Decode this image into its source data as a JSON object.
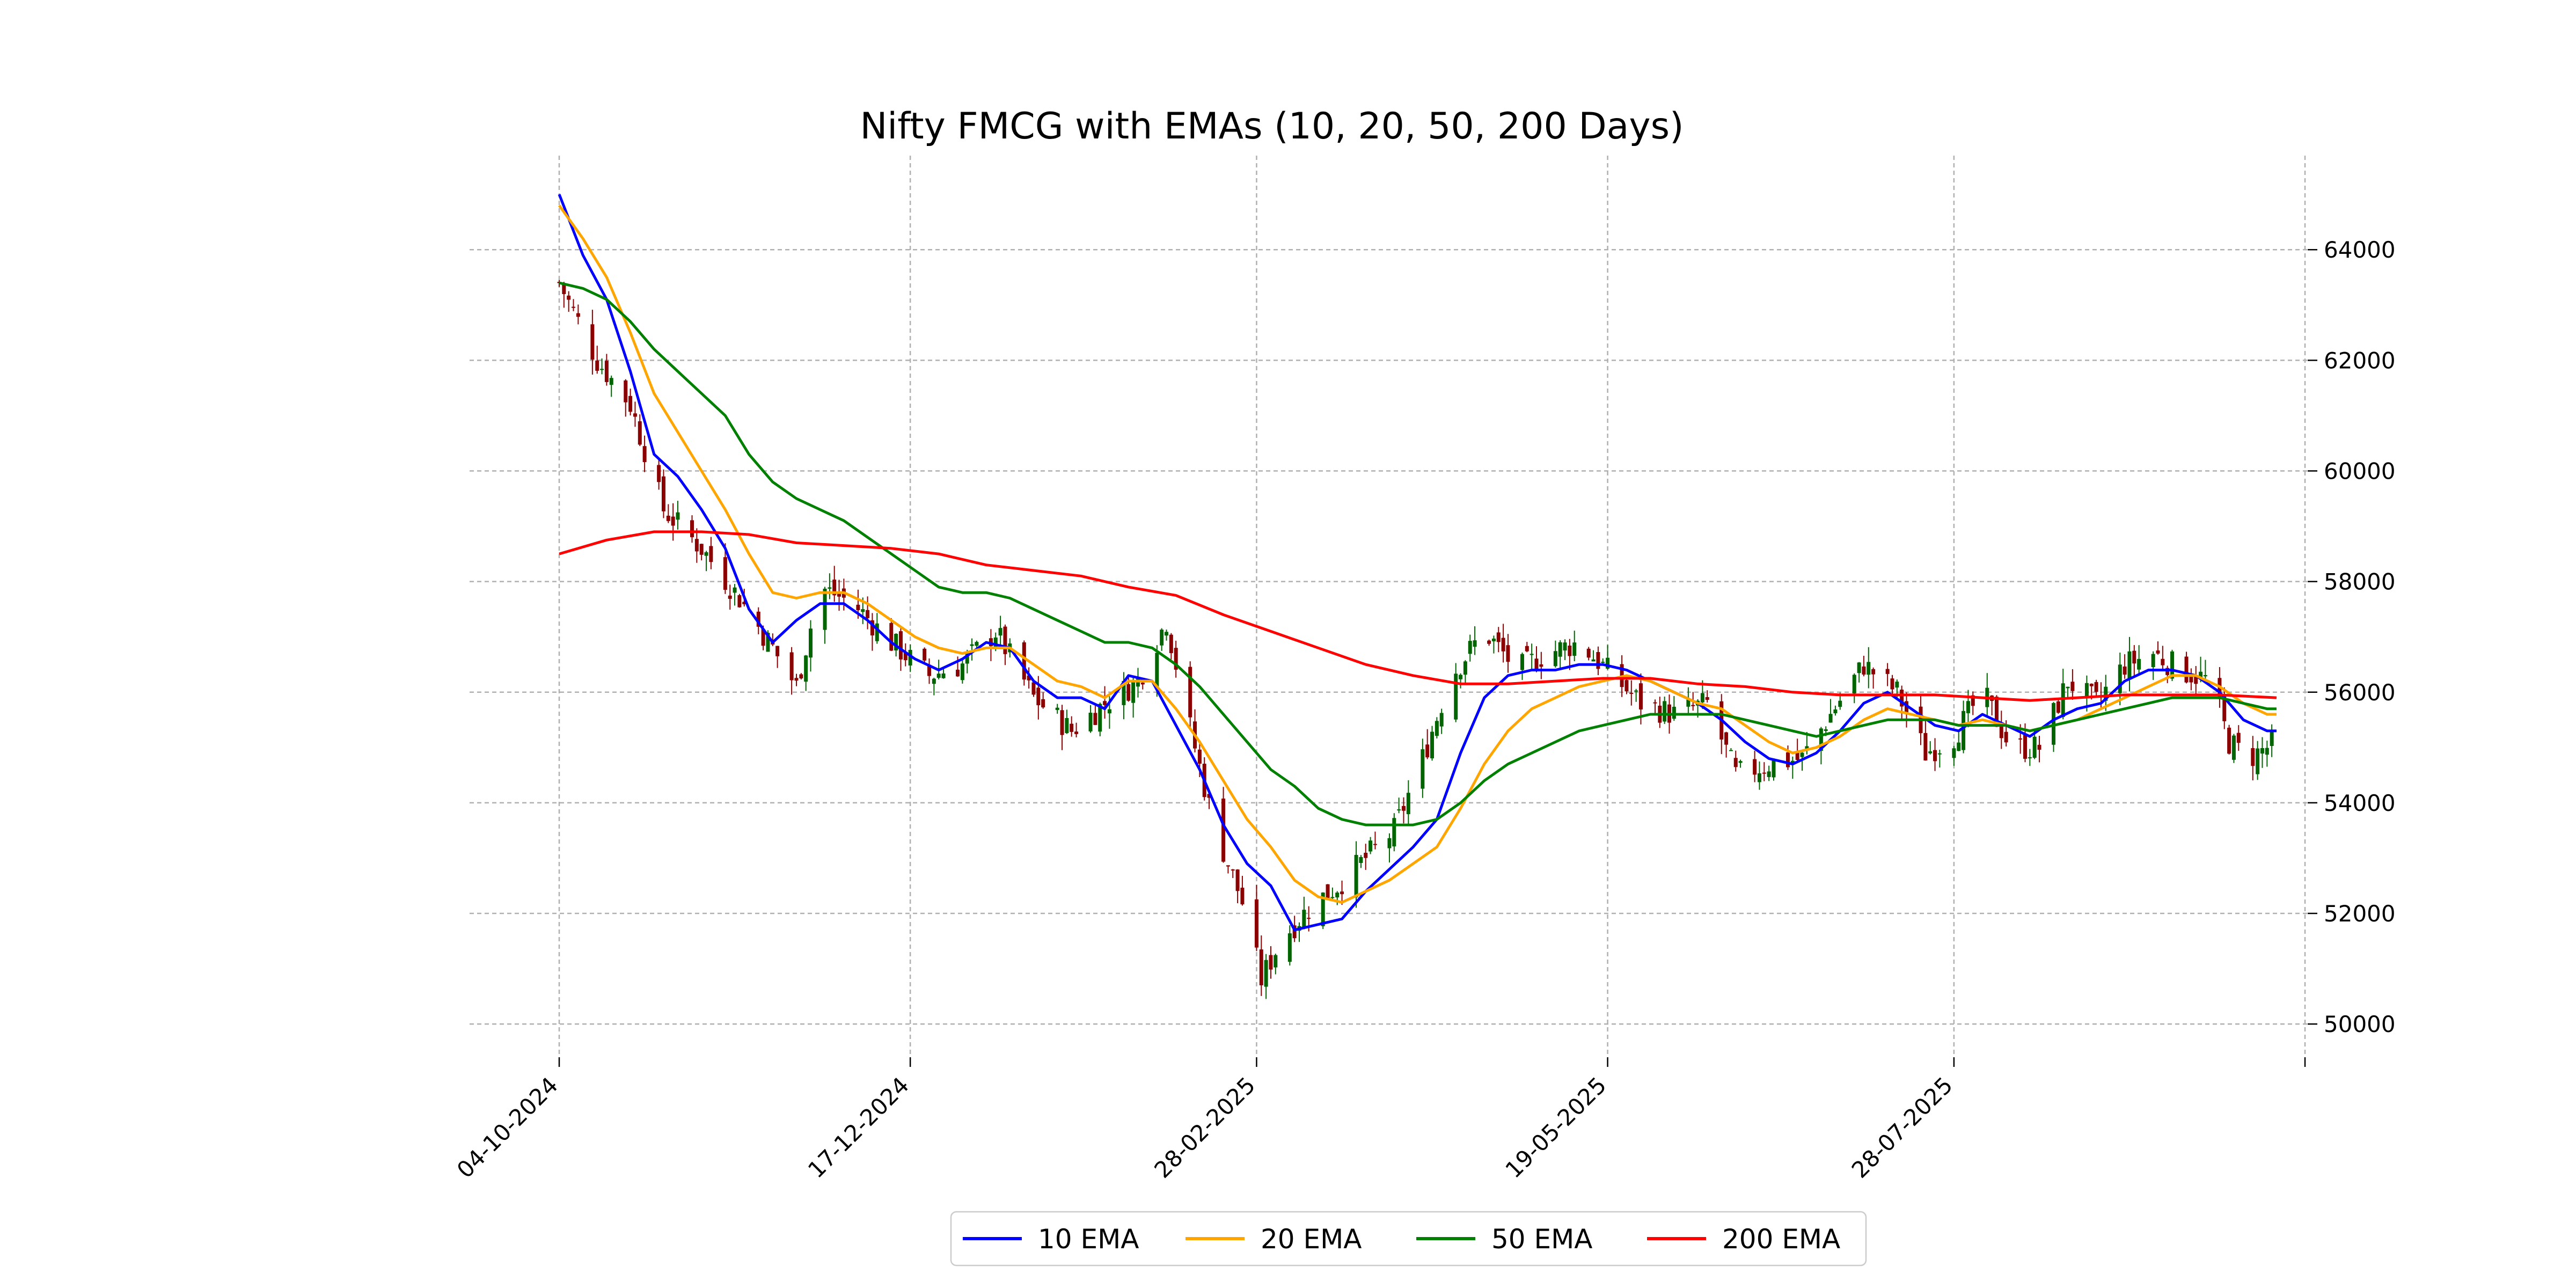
{
  "chart_data": {
    "type": "line",
    "title": "Nifty FMCG with EMAs (10, 20, 50, 200 Days)",
    "xlabel": "",
    "ylabel": "",
    "grid": true,
    "legend_placement": "bottom-center",
    "x_tick_labels": [
      "04-10-2024",
      "17-12-2024",
      "28-02-2025",
      "19-05-2025",
      "28-07-2025",
      ""
    ],
    "x_tick_days": [
      0,
      74,
      147,
      221,
      294,
      368
    ],
    "x_range_days": [
      0,
      362
    ],
    "y_ticks": [
      50000,
      52000,
      54000,
      56000,
      58000,
      60000,
      62000,
      64000
    ],
    "y_tick_labels": [
      "50000",
      "52000",
      "54000",
      "56000",
      "58000",
      "60000",
      "62000",
      "64000"
    ],
    "ylim": [
      49400,
      65700
    ],
    "candle_colors": {
      "up": "#006400",
      "down": "#8b0000"
    },
    "close_path": [
      [
        0,
        63400
      ],
      [
        8,
        62000
      ],
      [
        15,
        61200
      ],
      [
        22,
        59300
      ],
      [
        30,
        58600
      ],
      [
        38,
        57700
      ],
      [
        45,
        56800
      ],
      [
        50,
        56100
      ],
      [
        55,
        57900
      ],
      [
        62,
        57600
      ],
      [
        70,
        56900
      ],
      [
        78,
        56300
      ],
      [
        85,
        56500
      ],
      [
        92,
        57100
      ],
      [
        100,
        55900
      ],
      [
        108,
        55300
      ],
      [
        115,
        55800
      ],
      [
        122,
        56200
      ],
      [
        128,
        57300
      ],
      [
        132,
        55700
      ],
      [
        138,
        53600
      ],
      [
        144,
        52200
      ],
      [
        148,
        50800
      ],
      [
        152,
        51500
      ],
      [
        158,
        52100
      ],
      [
        164,
        52500
      ],
      [
        170,
        53000
      ],
      [
        176,
        53500
      ],
      [
        182,
        54800
      ],
      [
        188,
        56300
      ],
      [
        195,
        57100
      ],
      [
        202,
        56400
      ],
      [
        208,
        56700
      ],
      [
        215,
        56900
      ],
      [
        222,
        56300
      ],
      [
        228,
        55800
      ],
      [
        235,
        55600
      ],
      [
        242,
        55800
      ],
      [
        248,
        54500
      ],
      [
        255,
        54700
      ],
      [
        262,
        54800
      ],
      [
        268,
        55600
      ],
      [
        275,
        56500
      ],
      [
        282,
        56000
      ],
      [
        288,
        54900
      ],
      [
        294,
        55200
      ],
      [
        300,
        56000
      ],
      [
        306,
        55000
      ],
      [
        312,
        55000
      ],
      [
        318,
        56200
      ],
      [
        324,
        55800
      ],
      [
        330,
        56500
      ],
      [
        336,
        56700
      ],
      [
        342,
        56400
      ],
      [
        348,
        56200
      ],
      [
        352,
        55100
      ],
      [
        356,
        54800
      ],
      [
        360,
        55000
      ],
      [
        362,
        55100
      ]
    ],
    "series": [
      {
        "name": "10 EMA",
        "color": "#0000ff",
        "points": [
          [
            0,
            65000
          ],
          [
            5,
            63900
          ],
          [
            10,
            63100
          ],
          [
            15,
            61800
          ],
          [
            20,
            60300
          ],
          [
            25,
            59900
          ],
          [
            30,
            59300
          ],
          [
            35,
            58600
          ],
          [
            40,
            57500
          ],
          [
            45,
            56900
          ],
          [
            50,
            57300
          ],
          [
            55,
            57600
          ],
          [
            60,
            57600
          ],
          [
            65,
            57300
          ],
          [
            70,
            56900
          ],
          [
            75,
            56600
          ],
          [
            80,
            56400
          ],
          [
            85,
            56600
          ],
          [
            90,
            56900
          ],
          [
            95,
            56800
          ],
          [
            100,
            56200
          ],
          [
            105,
            55900
          ],
          [
            110,
            55900
          ],
          [
            115,
            55700
          ],
          [
            120,
            56300
          ],
          [
            125,
            56200
          ],
          [
            130,
            55400
          ],
          [
            135,
            54600
          ],
          [
            140,
            53600
          ],
          [
            145,
            52900
          ],
          [
            150,
            52500
          ],
          [
            155,
            51700
          ],
          [
            160,
            51800
          ],
          [
            165,
            51900
          ],
          [
            170,
            52400
          ],
          [
            175,
            52800
          ],
          [
            180,
            53200
          ],
          [
            185,
            53700
          ],
          [
            190,
            54900
          ],
          [
            195,
            55900
          ],
          [
            200,
            56300
          ],
          [
            205,
            56400
          ],
          [
            210,
            56400
          ],
          [
            215,
            56500
          ],
          [
            220,
            56500
          ],
          [
            225,
            56400
          ],
          [
            230,
            56200
          ],
          [
            235,
            56000
          ],
          [
            240,
            55800
          ],
          [
            245,
            55500
          ],
          [
            250,
            55100
          ],
          [
            255,
            54800
          ],
          [
            260,
            54700
          ],
          [
            265,
            54900
          ],
          [
            270,
            55300
          ],
          [
            275,
            55800
          ],
          [
            280,
            56000
          ],
          [
            285,
            55700
          ],
          [
            290,
            55400
          ],
          [
            295,
            55300
          ],
          [
            300,
            55600
          ],
          [
            305,
            55400
          ],
          [
            310,
            55200
          ],
          [
            315,
            55500
          ],
          [
            320,
            55700
          ],
          [
            325,
            55800
          ],
          [
            330,
            56200
          ],
          [
            335,
            56400
          ],
          [
            340,
            56400
          ],
          [
            345,
            56300
          ],
          [
            350,
            56000
          ],
          [
            355,
            55500
          ],
          [
            360,
            55300
          ],
          [
            362,
            55300
          ]
        ]
      },
      {
        "name": "20 EMA",
        "color": "#ffa500",
        "points": [
          [
            0,
            64800
          ],
          [
            5,
            64200
          ],
          [
            10,
            63500
          ],
          [
            15,
            62500
          ],
          [
            20,
            61400
          ],
          [
            25,
            60700
          ],
          [
            30,
            60000
          ],
          [
            35,
            59300
          ],
          [
            40,
            58500
          ],
          [
            45,
            57800
          ],
          [
            50,
            57700
          ],
          [
            55,
            57800
          ],
          [
            60,
            57800
          ],
          [
            65,
            57600
          ],
          [
            70,
            57300
          ],
          [
            75,
            57000
          ],
          [
            80,
            56800
          ],
          [
            85,
            56700
          ],
          [
            90,
            56800
          ],
          [
            95,
            56800
          ],
          [
            100,
            56500
          ],
          [
            105,
            56200
          ],
          [
            110,
            56100
          ],
          [
            115,
            55900
          ],
          [
            120,
            56200
          ],
          [
            125,
            56200
          ],
          [
            130,
            55700
          ],
          [
            135,
            55100
          ],
          [
            140,
            54400
          ],
          [
            145,
            53700
          ],
          [
            150,
            53200
          ],
          [
            155,
            52600
          ],
          [
            160,
            52300
          ],
          [
            165,
            52200
          ],
          [
            170,
            52400
          ],
          [
            175,
            52600
          ],
          [
            180,
            52900
          ],
          [
            185,
            53200
          ],
          [
            190,
            53900
          ],
          [
            195,
            54700
          ],
          [
            200,
            55300
          ],
          [
            205,
            55700
          ],
          [
            210,
            55900
          ],
          [
            215,
            56100
          ],
          [
            220,
            56200
          ],
          [
            225,
            56300
          ],
          [
            230,
            56200
          ],
          [
            235,
            56000
          ],
          [
            240,
            55800
          ],
          [
            245,
            55700
          ],
          [
            250,
            55400
          ],
          [
            255,
            55100
          ],
          [
            260,
            54900
          ],
          [
            265,
            55000
          ],
          [
            270,
            55200
          ],
          [
            275,
            55500
          ],
          [
            280,
            55700
          ],
          [
            285,
            55600
          ],
          [
            290,
            55500
          ],
          [
            295,
            55400
          ],
          [
            300,
            55500
          ],
          [
            305,
            55400
          ],
          [
            310,
            55300
          ],
          [
            315,
            55400
          ],
          [
            320,
            55500
          ],
          [
            325,
            55700
          ],
          [
            330,
            55900
          ],
          [
            335,
            56100
          ],
          [
            340,
            56300
          ],
          [
            345,
            56300
          ],
          [
            350,
            56100
          ],
          [
            355,
            55800
          ],
          [
            360,
            55600
          ],
          [
            362,
            55600
          ]
        ]
      },
      {
        "name": "50 EMA",
        "color": "#008000",
        "points": [
          [
            0,
            63400
          ],
          [
            5,
            63300
          ],
          [
            10,
            63100
          ],
          [
            15,
            62700
          ],
          [
            20,
            62200
          ],
          [
            25,
            61800
          ],
          [
            30,
            61400
          ],
          [
            35,
            61000
          ],
          [
            40,
            60300
          ],
          [
            45,
            59800
          ],
          [
            50,
            59500
          ],
          [
            55,
            59300
          ],
          [
            60,
            59100
          ],
          [
            65,
            58800
          ],
          [
            70,
            58500
          ],
          [
            75,
            58200
          ],
          [
            80,
            57900
          ],
          [
            85,
            57800
          ],
          [
            90,
            57800
          ],
          [
            95,
            57700
          ],
          [
            100,
            57500
          ],
          [
            105,
            57300
          ],
          [
            110,
            57100
          ],
          [
            115,
            56900
          ],
          [
            120,
            56900
          ],
          [
            125,
            56800
          ],
          [
            130,
            56500
          ],
          [
            135,
            56100
          ],
          [
            140,
            55600
          ],
          [
            145,
            55100
          ],
          [
            150,
            54600
          ],
          [
            155,
            54300
          ],
          [
            160,
            53900
          ],
          [
            165,
            53700
          ],
          [
            170,
            53600
          ],
          [
            175,
            53600
          ],
          [
            180,
            53600
          ],
          [
            185,
            53700
          ],
          [
            190,
            54000
          ],
          [
            195,
            54400
          ],
          [
            200,
            54700
          ],
          [
            205,
            54900
          ],
          [
            210,
            55100
          ],
          [
            215,
            55300
          ],
          [
            220,
            55400
          ],
          [
            225,
            55500
          ],
          [
            230,
            55600
          ],
          [
            235,
            55600
          ],
          [
            240,
            55600
          ],
          [
            245,
            55600
          ],
          [
            250,
            55500
          ],
          [
            255,
            55400
          ],
          [
            260,
            55300
          ],
          [
            265,
            55200
          ],
          [
            270,
            55300
          ],
          [
            275,
            55400
          ],
          [
            280,
            55500
          ],
          [
            285,
            55500
          ],
          [
            290,
            55500
          ],
          [
            295,
            55400
          ],
          [
            300,
            55400
          ],
          [
            305,
            55400
          ],
          [
            310,
            55300
          ],
          [
            315,
            55400
          ],
          [
            320,
            55500
          ],
          [
            325,
            55600
          ],
          [
            330,
            55700
          ],
          [
            335,
            55800
          ],
          [
            340,
            55900
          ],
          [
            345,
            55900
          ],
          [
            350,
            55900
          ],
          [
            355,
            55800
          ],
          [
            360,
            55700
          ],
          [
            362,
            55700
          ]
        ]
      },
      {
        "name": "200 EMA",
        "color": "#ff0000",
        "points": [
          [
            0,
            58500
          ],
          [
            10,
            58750
          ],
          [
            20,
            58900
          ],
          [
            30,
            58900
          ],
          [
            40,
            58850
          ],
          [
            50,
            58700
          ],
          [
            60,
            58650
          ],
          [
            70,
            58600
          ],
          [
            80,
            58500
          ],
          [
            90,
            58300
          ],
          [
            100,
            58200
          ],
          [
            110,
            58100
          ],
          [
            120,
            57900
          ],
          [
            130,
            57750
          ],
          [
            140,
            57400
          ],
          [
            150,
            57100
          ],
          [
            160,
            56800
          ],
          [
            170,
            56500
          ],
          [
            180,
            56300
          ],
          [
            190,
            56150
          ],
          [
            200,
            56150
          ],
          [
            210,
            56200
          ],
          [
            220,
            56250
          ],
          [
            230,
            56250
          ],
          [
            240,
            56150
          ],
          [
            250,
            56100
          ],
          [
            260,
            56000
          ],
          [
            270,
            55950
          ],
          [
            280,
            55950
          ],
          [
            290,
            55950
          ],
          [
            300,
            55900
          ],
          [
            310,
            55850
          ],
          [
            320,
            55900
          ],
          [
            330,
            55950
          ],
          [
            340,
            55950
          ],
          [
            350,
            55950
          ],
          [
            362,
            55900
          ]
        ]
      }
    ],
    "legend": [
      "10 EMA",
      "20 EMA",
      "50 EMA",
      "200 EMA"
    ]
  }
}
